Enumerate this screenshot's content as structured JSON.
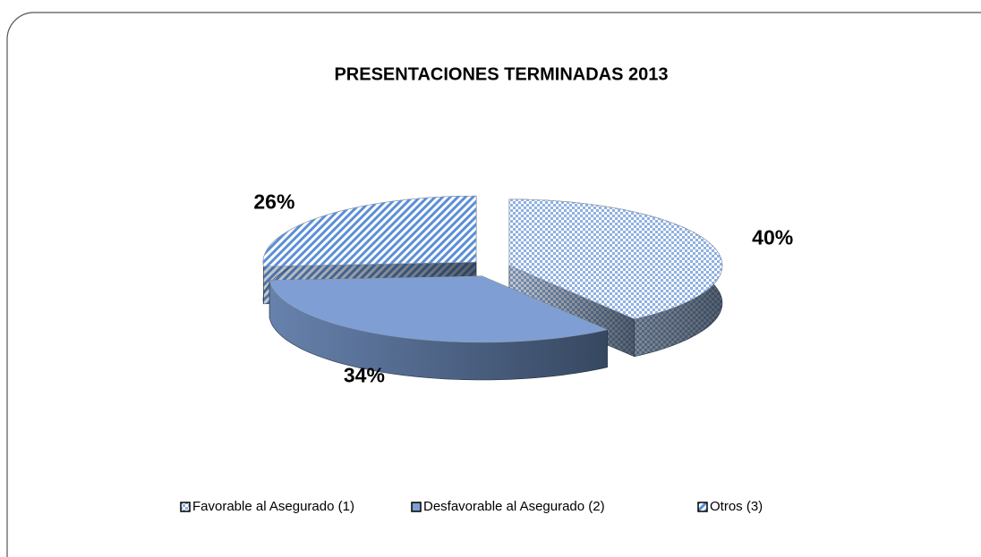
{
  "chart_data": {
    "type": "pie",
    "title": "PRESENTACIONES TERMINADAS 2013",
    "categories": [
      "Favorable al Asegurado (1)",
      "Desfavorable al Asegurado (2)",
      "Otros (3)"
    ],
    "values": [
      40,
      34,
      26
    ],
    "value_labels": [
      "40%",
      "34%",
      "26%"
    ],
    "colors": [
      "#8fb0e0",
      "#7f9fd4",
      "#5b8fd6"
    ],
    "legend": "bottom"
  }
}
